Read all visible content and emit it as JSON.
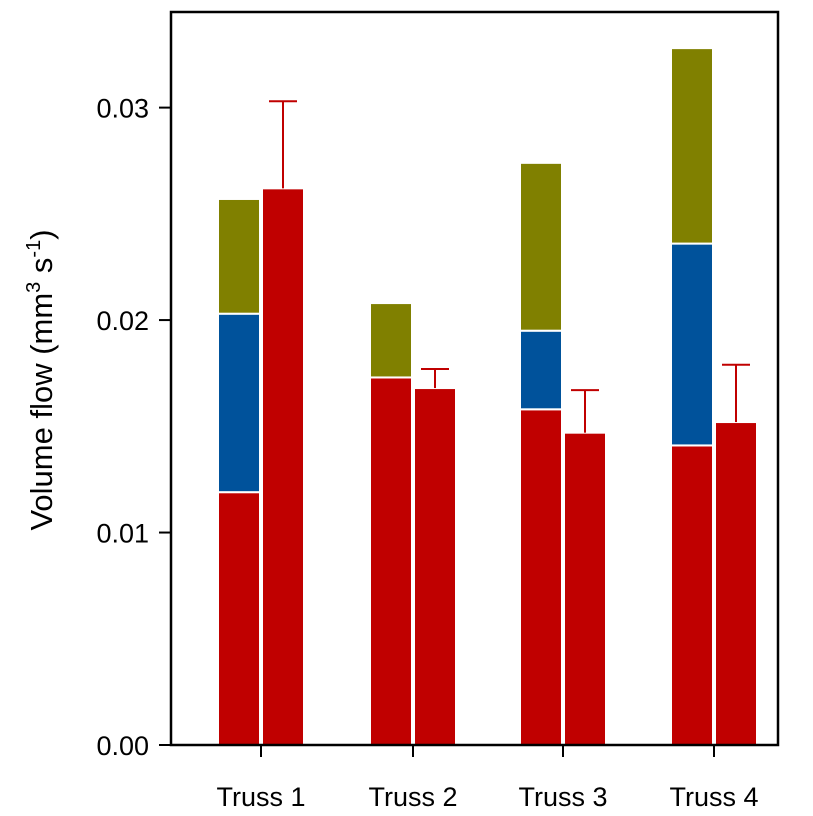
{
  "chart_data": {
    "type": "bar",
    "stacked_and_grouped": true,
    "categories": [
      "Truss 1",
      "Truss 2",
      "Truss 3",
      "Truss 4"
    ],
    "ylabel": {
      "prefix": "Volume flow  (mm",
      "sup1": "3",
      "middle": " s",
      "sup2": "-1",
      "suffix": ")"
    },
    "ylim": [
      0,
      0.0345
    ],
    "yticks": [
      {
        "value": 0.0,
        "label": "0.00"
      },
      {
        "value": 0.01,
        "label": "0.01"
      },
      {
        "value": 0.02,
        "label": "0.02"
      },
      {
        "value": 0.03,
        "label": "0.03"
      }
    ],
    "grid": false,
    "legend": "none",
    "colors": {
      "red": "#c00000",
      "blue": "#00529b",
      "olive": "#808000",
      "error": "#c00000"
    },
    "stacked_bars": [
      {
        "category": "Truss 1",
        "segments": [
          {
            "color": "red",
            "value": 0.0119
          },
          {
            "color": "blue",
            "value": 0.0084
          },
          {
            "color": "olive",
            "value": 0.0054
          }
        ]
      },
      {
        "category": "Truss 2",
        "segments": [
          {
            "color": "red",
            "value": 0.0173
          },
          {
            "color": "olive",
            "value": 0.0035
          }
        ]
      },
      {
        "category": "Truss 3",
        "segments": [
          {
            "color": "red",
            "value": 0.0158
          },
          {
            "color": "blue",
            "value": 0.0037
          },
          {
            "color": "olive",
            "value": 0.0079
          }
        ]
      },
      {
        "category": "Truss 4",
        "segments": [
          {
            "color": "red",
            "value": 0.0141
          },
          {
            "color": "blue",
            "value": 0.0095
          },
          {
            "color": "olive",
            "value": 0.0092
          }
        ]
      }
    ],
    "measured_bars": [
      {
        "category": "Truss 1",
        "value": 0.0262,
        "error": 0.0041
      },
      {
        "category": "Truss 2",
        "value": 0.0168,
        "error": 0.0009
      },
      {
        "category": "Truss 3",
        "value": 0.0147,
        "error": 0.002
      },
      {
        "category": "Truss 4",
        "value": 0.0152,
        "error": 0.0027
      }
    ]
  }
}
